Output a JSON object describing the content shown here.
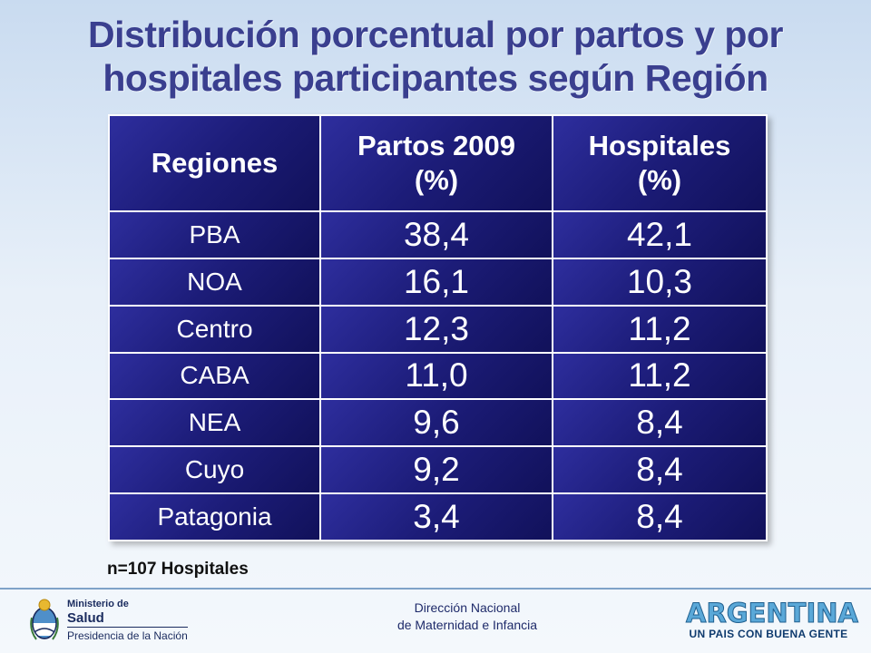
{
  "title": {
    "line1": "Distribución porcentual  por partos y por",
    "line2": "hospitales participantes según Región"
  },
  "table": {
    "headers": [
      "Regiones",
      "Partos 2009\n(%)",
      "Hospitales\n(%)"
    ],
    "header_lines": [
      [
        "Regiones"
      ],
      [
        "Partos 2009",
        "(%)"
      ],
      [
        "Hospitales",
        "(%)"
      ]
    ],
    "rows": [
      [
        "PBA",
        "38,4",
        "42,1"
      ],
      [
        "NOA",
        "16,1",
        "10,3"
      ],
      [
        "Centro",
        "12,3",
        "11,2"
      ],
      [
        "CABA",
        "11,0",
        "11,2"
      ],
      [
        "NEA",
        "9,6",
        "8,4"
      ],
      [
        "Cuyo",
        "9,2",
        "8,4"
      ],
      [
        "Patagonia",
        "3,4",
        "8,4"
      ]
    ]
  },
  "footnote": "n=107 Hospitales",
  "footer": {
    "ministry_line1": "Ministerio de",
    "ministry_line2": "Salud",
    "ministry_line3": "Presidencia de la Nación",
    "center_line1": "Dirección Nacional",
    "center_line2": "de Maternidad e Infancia",
    "brand_main": "ARGENTINA",
    "brand_tagline": "UN PAIS CON BUENA GENTE"
  },
  "colors": {
    "title": "#3a3f8f",
    "cell_bg": "#1c1c78",
    "brand": "#5aa8d8"
  }
}
